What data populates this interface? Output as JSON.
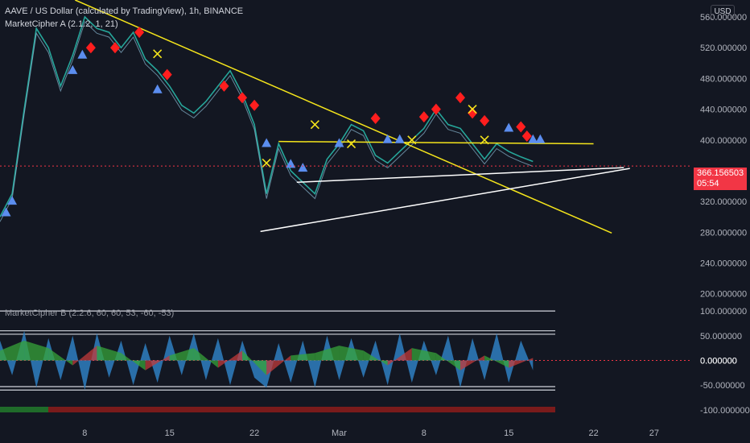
{
  "header": {
    "title": "AAVE / US Dollar (calculated by TradingView), 1h, BINANCE",
    "indicator_a": "MarketCipher A (2.1.2, 1, 21)",
    "indicator_b": "MarketCipher B (2.2.6, 60, 60, 53, -60, -53)"
  },
  "currency_button": "USD",
  "last_price": {
    "value": "366.156503",
    "countdown": "05:54"
  },
  "colors": {
    "background": "#131722",
    "up": "#26a69a",
    "down": "#ef5350",
    "trendline_yellow": "#f5e51b",
    "trendline_white": "#ffffff",
    "price_tag": "#f23645",
    "wave_blue": "#2f7fc1",
    "money_flow_green": "#37a43a",
    "money_flow_red": "#c23b3b"
  },
  "chart_data": [
    {
      "type": "line",
      "name": "price",
      "title": "AAVE / US Dollar (calculated by TradingView), 1h, BINANCE",
      "y_ticks": [
        "200.000000",
        "240.000000",
        "280.000000",
        "320.000000",
        "360.000000",
        "400.000000",
        "440.000000",
        "480.000000",
        "520.000000",
        "560.000000"
      ],
      "y_tick_values": [
        200,
        240,
        280,
        320,
        360,
        400,
        440,
        480,
        520,
        560
      ],
      "ylim": [
        184,
        582
      ],
      "x_ticks": [
        "8",
        "15",
        "22",
        "Mar",
        "8",
        "15",
        "22",
        "27"
      ],
      "x_tick_days": [
        8,
        15,
        22,
        29,
        36,
        43,
        50,
        55
      ],
      "x_unit": "day index (Feb 1 = 1, Mar 1 = 29)",
      "xlim": [
        1.0,
        58.0
      ],
      "series": [
        {
          "x": [
            1,
            2,
            3,
            4,
            5,
            6,
            7,
            8,
            9,
            10,
            11,
            12,
            13,
            14,
            15,
            16,
            17,
            18,
            19,
            20,
            21,
            22,
            23,
            24,
            25,
            26,
            27,
            28,
            29,
            30,
            31,
            32,
            33,
            34,
            35,
            36,
            37,
            38,
            39,
            40,
            41,
            42,
            43,
            44,
            45
          ],
          "values": [
            300,
            330,
            440,
            545,
            520,
            470,
            510,
            560,
            545,
            540,
            520,
            540,
            505,
            490,
            470,
            445,
            435,
            450,
            470,
            490,
            460,
            420,
            330,
            395,
            360,
            345,
            330,
            375,
            395,
            420,
            412,
            380,
            370,
            385,
            400,
            415,
            440,
            420,
            415,
            395,
            375,
            395,
            385,
            378,
            372
          ]
        }
      ],
      "markers": {
        "up_triangles": [
          [
            1.5,
            305
          ],
          [
            2.0,
            320
          ],
          [
            7,
            490
          ],
          [
            7.8,
            510
          ],
          [
            14,
            465
          ],
          [
            23,
            395
          ],
          [
            25,
            368
          ],
          [
            26,
            363
          ],
          [
            29,
            395
          ],
          [
            33,
            400
          ],
          [
            34,
            400
          ],
          [
            43,
            415
          ],
          [
            45,
            400
          ],
          [
            45.6,
            400
          ]
        ],
        "down_diamonds": [
          [
            8.5,
            520
          ],
          [
            10.5,
            520
          ],
          [
            12.5,
            540
          ],
          [
            14.8,
            485
          ],
          [
            19.5,
            470
          ],
          [
            21,
            455
          ],
          [
            22,
            445
          ],
          [
            32,
            428
          ],
          [
            36,
            430
          ],
          [
            37,
            440
          ],
          [
            39,
            455
          ],
          [
            40,
            435
          ],
          [
            41,
            425
          ],
          [
            44,
            417
          ],
          [
            44.5,
            405
          ]
        ],
        "yellow_crosses": [
          [
            14,
            512
          ],
          [
            23,
            370
          ],
          [
            27,
            420
          ],
          [
            30,
            395
          ],
          [
            35,
            400
          ],
          [
            40,
            440
          ],
          [
            41,
            400
          ]
        ],
        "last_value": 366.156503
      },
      "trendlines": [
        {
          "color": "yellow",
          "from": [
            7.2,
            582
          ],
          "to": [
            51.5,
            279
          ]
        },
        {
          "color": "yellow",
          "from": [
            24,
            398
          ],
          "to": [
            50,
            395
          ]
        },
        {
          "color": "white",
          "from": [
            25.5,
            345
          ],
          "to": [
            52.5,
            364
          ]
        },
        {
          "color": "white",
          "from": [
            22.5,
            281
          ],
          "to": [
            53,
            363
          ]
        }
      ],
      "grid": false,
      "legend": "none"
    },
    {
      "type": "area",
      "name": "MarketCipher B",
      "title": "MarketCipher B (2.2.6, 60, 60, 53, -60, -53)",
      "y_ticks": [
        "100.000000",
        "50.000000",
        "0.000000",
        "-50.000000",
        "-100.000000"
      ],
      "y_tick_values": [
        100,
        50,
        0,
        -50,
        -100
      ],
      "ylim": [
        -115,
        110
      ],
      "reference_lines": [
        100,
        60,
        53,
        -53,
        -60
      ],
      "xlim": [
        1.0,
        58.0
      ],
      "series": [
        {
          "name": "wave",
          "x": [
            1,
            2,
            3,
            4,
            5,
            6,
            7,
            8,
            9,
            10,
            11,
            12,
            13,
            14,
            15,
            16,
            17,
            18,
            19,
            20,
            21,
            22,
            23,
            24,
            25,
            26,
            27,
            28,
            29,
            30,
            31,
            32,
            33,
            34,
            35,
            36,
            37,
            38,
            39,
            40,
            41,
            42,
            43,
            44,
            45
          ],
          "values": [
            40,
            -30,
            60,
            -55,
            45,
            -40,
            50,
            -60,
            55,
            -35,
            40,
            -50,
            35,
            -45,
            50,
            -30,
            55,
            -40,
            45,
            -50,
            40,
            -35,
            -55,
            35,
            -45,
            40,
            -55,
            50,
            -40,
            45,
            -35,
            40,
            -50,
            55,
            -45,
            40,
            -30,
            50,
            -55,
            45,
            -40,
            55,
            -45,
            40,
            -20
          ]
        },
        {
          "name": "money_flow",
          "x": [
            1,
            3,
            5,
            7,
            9,
            11,
            13,
            15,
            17,
            19,
            21,
            23,
            25,
            27,
            29,
            31,
            33,
            35,
            37,
            39,
            41,
            43,
            45
          ],
          "values": [
            20,
            40,
            25,
            -10,
            30,
            15,
            -20,
            10,
            25,
            -15,
            20,
            -30,
            10,
            15,
            30,
            20,
            -10,
            25,
            15,
            -20,
            10,
            -15,
            5
          ]
        }
      ],
      "last_value": 0,
      "grid": false,
      "legend": "none"
    }
  ]
}
